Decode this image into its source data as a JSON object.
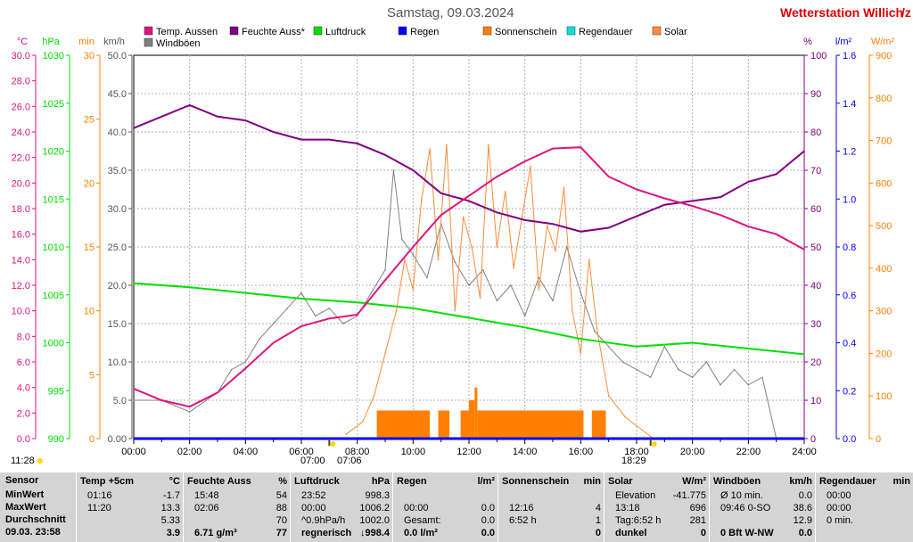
{
  "title": "Samstag, 09.03.2024",
  "station": "Wetterstation Willich",
  "station_suffix": "/z",
  "time_left": "11:28",
  "time_sunrise": "07:00",
  "time_sunrise2": "07:06",
  "time_sunset": "18:29",
  "colors": {
    "temp": "#e0137f",
    "humid": "#800080",
    "press": "#00e000",
    "rain": "#0000ff",
    "sun": "#ff8000",
    "raindur": "#00e0e0",
    "solar": "#ff8c3a",
    "wind": "#808080",
    "grid": "#b0b0b0"
  },
  "chart_data": {
    "type": "line",
    "x_label_hours": [
      "00:00",
      "02:00",
      "04:00",
      "06:00",
      "08:00",
      "10:00",
      "12:00",
      "14:00",
      "16:00",
      "18:00",
      "20:00",
      "22:00",
      "24:00"
    ],
    "axes": {
      "temp_c": {
        "label": "°C",
        "min": 0,
        "max": 30,
        "ticks": [
          "0.0",
          "2.0",
          "4.0",
          "6.0",
          "8.0",
          "10.0",
          "12.0",
          "14.0",
          "16.0",
          "18.0",
          "20.0",
          "22.0",
          "24.0",
          "26.0",
          "28.0",
          "30.0"
        ]
      },
      "press_hpa": {
        "label": "hPa",
        "ticks": [
          "990",
          "995",
          "1000",
          "1005",
          "1010",
          "1015",
          "1020",
          "1025",
          "1030"
        ]
      },
      "min": {
        "label": "min",
        "ticks": [
          "0",
          "5",
          "10",
          "15",
          "20",
          "25",
          "30"
        ]
      },
      "kmh": {
        "label": "km/h",
        "ticks": [
          "0.00",
          "5.0",
          "10.0",
          "15.0",
          "20.0",
          "25.0",
          "30.0",
          "35.0",
          "40.0",
          "45.0",
          "50.0"
        ]
      },
      "percent": {
        "label": "%",
        "ticks": [
          "0",
          "10",
          "20",
          "30",
          "40",
          "50",
          "60",
          "70",
          "80",
          "90",
          "100"
        ]
      },
      "lm2": {
        "label": "l/m²",
        "ticks": [
          "0.0",
          "0.2",
          "0.4",
          "0.6",
          "0.8",
          "1.0",
          "1.2",
          "1.4",
          "1.6"
        ]
      },
      "wm2": {
        "label": "W/m²",
        "ticks": [
          "0",
          "100",
          "200",
          "300",
          "400",
          "500",
          "600",
          "700",
          "800",
          "900"
        ]
      }
    },
    "legend": [
      {
        "name": "Temp. Aussen",
        "color": "#e0137f"
      },
      {
        "name": "Feuchte Auss*",
        "color": "#800080"
      },
      {
        "name": "Luftdruck",
        "color": "#00e000"
      },
      {
        "name": "Regen",
        "color": "#0000ff"
      },
      {
        "name": "Sonnenschein",
        "color": "#ff8000"
      },
      {
        "name": "Regendauer",
        "color": "#00e0e0"
      },
      {
        "name": "Solar",
        "color": "#ff8c3a"
      },
      {
        "name": "Windböen",
        "color": "#808080"
      }
    ],
    "series": [
      {
        "name": "Temp. Aussen",
        "unit": "°C",
        "x": [
          0,
          1,
          2,
          3,
          4,
          5,
          6,
          7,
          8,
          9,
          10,
          11,
          12,
          13,
          14,
          15,
          16,
          17,
          18,
          19,
          20,
          21,
          22,
          23,
          24
        ],
        "y": [
          3.9,
          3.0,
          2.5,
          3.6,
          5.5,
          7.5,
          8.8,
          9.4,
          9.7,
          12.4,
          15.0,
          17.5,
          19.0,
          20.5,
          21.7,
          22.7,
          22.8,
          20.5,
          19.5,
          18.8,
          18.2,
          17.5,
          16.6,
          16.0,
          14.8
        ]
      },
      {
        "name": "Feuchte Auss*",
        "unit": "%",
        "x": [
          0,
          1,
          2,
          3,
          4,
          5,
          6,
          7,
          8,
          9,
          10,
          11,
          12,
          13,
          14,
          15,
          16,
          17,
          18,
          19,
          20,
          21,
          22,
          23,
          24
        ],
        "y": [
          81,
          84,
          87,
          84,
          83,
          80,
          78,
          78,
          77,
          74,
          70,
          64,
          62,
          59,
          57,
          56,
          54,
          55,
          58,
          61,
          62,
          63,
          67,
          69,
          75
        ]
      },
      {
        "name": "Luftdruck",
        "unit": "hPa",
        "x": [
          0,
          2,
          4,
          6,
          8,
          10,
          12,
          14,
          16,
          18,
          20,
          22,
          24
        ],
        "y": [
          1006.2,
          1005.8,
          1005.2,
          1004.6,
          1004.2,
          1003.6,
          1002.6,
          1001.6,
          1000.4,
          999.6,
          1000.0,
          999.4,
          998.8
        ]
      },
      {
        "name": "Regen",
        "unit": "l/m²",
        "x": [
          0,
          24
        ],
        "y": [
          0.0,
          0.0
        ]
      },
      {
        "name": "Sonnenschein",
        "unit": "min",
        "bars": [
          {
            "from": 8.7,
            "to": 10.6,
            "value": 2.2
          },
          {
            "from": 10.9,
            "to": 11.3,
            "value": 2.2
          },
          {
            "from": 11.7,
            "to": 12.0,
            "value": 2.2
          },
          {
            "from": 12.0,
            "to": 12.2,
            "value": 3.0
          },
          {
            "from": 12.2,
            "to": 12.3,
            "value": 4.0
          },
          {
            "from": 12.3,
            "to": 16.1,
            "value": 2.2
          },
          {
            "from": 16.4,
            "to": 16.9,
            "value": 2.2
          }
        ]
      },
      {
        "name": "Solar",
        "unit": "W/m²",
        "x": [
          7.6,
          8.2,
          8.6,
          9.0,
          9.4,
          9.7,
          10.0,
          10.3,
          10.6,
          10.9,
          11.2,
          11.5,
          11.8,
          12.1,
          12.4,
          12.7,
          13.0,
          13.3,
          13.6,
          13.9,
          14.2,
          14.5,
          14.8,
          15.1,
          15.4,
          15.7,
          16.0,
          16.3,
          16.6,
          17.0,
          17.6,
          18.5
        ],
        "y": [
          10,
          40,
          100,
          200,
          300,
          420,
          350,
          560,
          680,
          420,
          690,
          300,
          520,
          450,
          330,
          690,
          450,
          580,
          400,
          520,
          640,
          350,
          500,
          440,
          590,
          300,
          200,
          420,
          250,
          100,
          50,
          5
        ]
      },
      {
        "name": "Windböen",
        "unit": "km/h",
        "x": [
          0,
          1,
          2,
          3,
          3.5,
          4,
          4.5,
          5,
          5.5,
          6,
          6.5,
          7,
          7.5,
          8,
          8.5,
          9,
          9.3,
          9.6,
          10,
          10.5,
          11,
          11.5,
          12,
          12.5,
          13,
          13.5,
          14,
          14.5,
          15,
          15.5,
          16,
          16.5,
          17,
          17.5,
          18,
          18.5,
          19,
          19.5,
          20,
          20.5,
          21,
          21.5,
          22,
          22.5,
          23,
          24
        ],
        "y": [
          5.0,
          5.0,
          3.5,
          6.0,
          9.0,
          10.0,
          13.0,
          15.0,
          17.0,
          19.0,
          16.0,
          17.0,
          15.0,
          16.0,
          19.0,
          22.0,
          35.0,
          26.0,
          24.0,
          21.0,
          28.0,
          23.0,
          20.0,
          22.0,
          18.0,
          20.0,
          16.0,
          21.0,
          18.0,
          25.0,
          19.0,
          14.0,
          12.0,
          10.0,
          9.0,
          8.0,
          12.0,
          9.0,
          8.0,
          10.0,
          7.0,
          9.0,
          7.0,
          8.0,
          0.0,
          0.0
        ]
      }
    ]
  },
  "table": {
    "sensor": {
      "title": "Sensor",
      "rows": [
        "MinWert",
        "MaxWert",
        "Durchschnitt",
        "09.03. 23:58"
      ]
    },
    "cols": [
      {
        "title": "Temp +5cm",
        "unit": "°C",
        "rows": [
          [
            "01:16",
            "-1.7"
          ],
          [
            "11:20",
            "13.3"
          ],
          [
            "",
            "5.33"
          ],
          [
            "",
            "3.9"
          ]
        ]
      },
      {
        "title": "Feuchte Auss",
        "unit": "%",
        "rows": [
          [
            "15:48",
            "54"
          ],
          [
            "02:06",
            "88"
          ],
          [
            "",
            "70"
          ],
          [
            "6.71 g/m³",
            "77"
          ]
        ]
      },
      {
        "title": "Luftdruck",
        "unit": "hPa",
        "rows": [
          [
            "23:52",
            "998.3"
          ],
          [
            "00:00",
            "1006.2"
          ],
          [
            "^0.9hPa/h",
            "1002.0"
          ],
          [
            "regnerisch",
            "↓998.4"
          ]
        ]
      },
      {
        "title": "Regen",
        "unit": "l/m²",
        "rows": [
          [
            "",
            ""
          ],
          [
            "00:00",
            "0.0"
          ],
          [
            "Gesamt:",
            "0.0"
          ],
          [
            "0.0 l/m²",
            "0.0"
          ]
        ]
      },
      {
        "title": "Sonnenschein",
        "unit": "min",
        "rows": [
          [
            "",
            ""
          ],
          [
            "12:16",
            "4"
          ],
          [
            "6:52 h",
            "1"
          ],
          [
            "",
            "0"
          ]
        ]
      },
      {
        "title": "Solar",
        "unit": "W/m²",
        "rows": [
          [
            "Elevation",
            "-41.775"
          ],
          [
            "13:18",
            "696"
          ],
          [
            "Tag:6:52 h",
            "281"
          ],
          [
            "dunkel",
            "0"
          ]
        ]
      },
      {
        "title": "Windböen",
        "unit": "km/h",
        "rows": [
          [
            "Ø 10 min.",
            "0.0"
          ],
          [
            "09:46  0-SO",
            "38.6"
          ],
          [
            "",
            "12.9"
          ],
          [
            "0 Bft W-NW",
            "0.0"
          ]
        ]
      },
      {
        "title": "Regendauer",
        "unit": "min",
        "rows": [
          [
            "00:00",
            ""
          ],
          [
            "00:00",
            ""
          ],
          [
            "0 min.",
            ""
          ],
          [
            "",
            ""
          ]
        ]
      }
    ]
  }
}
